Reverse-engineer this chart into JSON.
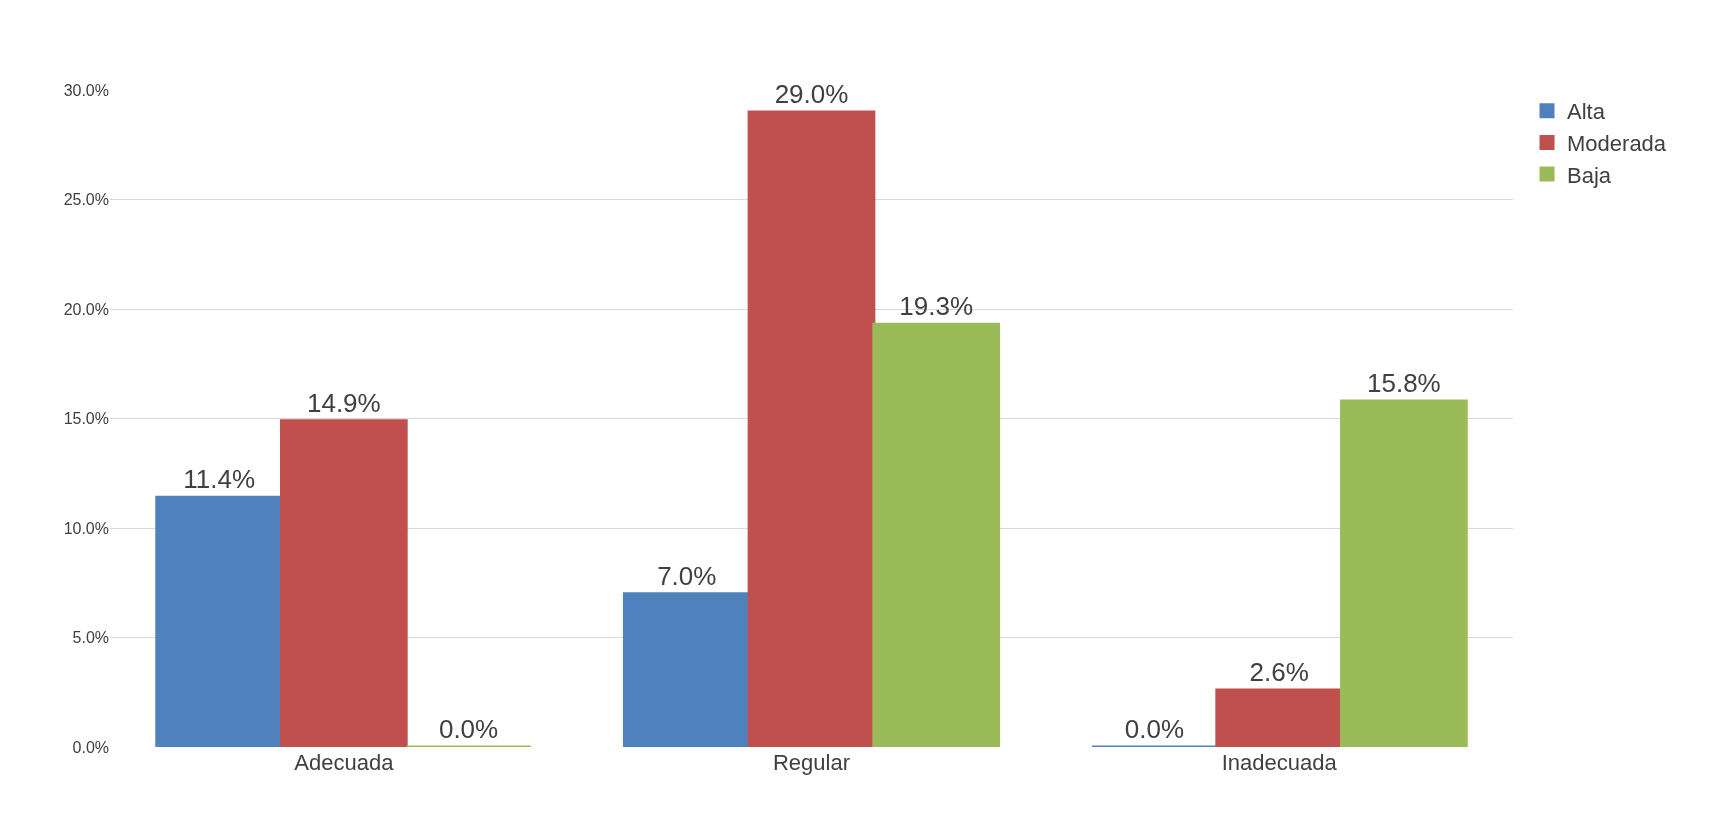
{
  "chart_data": {
    "type": "bar",
    "categories": [
      "Adecuada",
      "Regular",
      "Inadecuada"
    ],
    "series": [
      {
        "name": "Alta",
        "color": "#4f81bd",
        "values": [
          11.4,
          7.0,
          0.0
        ],
        "value_labels": [
          "11.4%",
          "7.0%",
          "0.0%"
        ]
      },
      {
        "name": "Moderada",
        "color": "#c0504d",
        "values": [
          14.9,
          29.0,
          2.6
        ],
        "value_labels": [
          "14.9%",
          "29.0%",
          "2.6%"
        ]
      },
      {
        "name": "Baja",
        "color": "#9bbb59",
        "values": [
          0.0,
          19.3,
          15.8
        ],
        "value_labels": [
          "0.0%",
          "19.3%",
          "15.8%"
        ]
      }
    ],
    "ylim": [
      0,
      30
    ],
    "yticks": [
      {
        "value": 0,
        "label": "0.0%"
      },
      {
        "value": 5,
        "label": "5.0%"
      },
      {
        "value": 10,
        "label": "10.0%"
      },
      {
        "value": 15,
        "label": "15.0%"
      },
      {
        "value": 20,
        "label": "20.0%"
      },
      {
        "value": 25,
        "label": "25.0%"
      },
      {
        "value": 30,
        "label": "30.0%"
      }
    ],
    "grid": "y",
    "legend": "top right"
  }
}
